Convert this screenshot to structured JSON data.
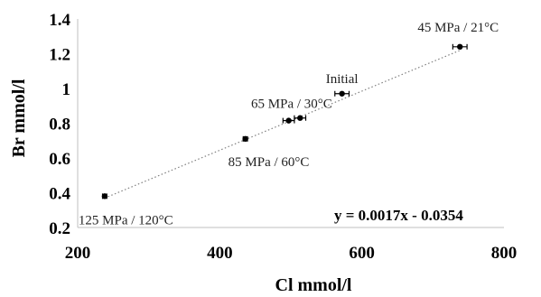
{
  "chart_data": {
    "type": "scatter",
    "xlabel": "Cl mmol/l",
    "ylabel": "Br mmol/l",
    "xlim": [
      200,
      800
    ],
    "ylim": [
      0.2,
      1.4
    ],
    "xticks": [
      200,
      400,
      600,
      800
    ],
    "xtick_labels": [
      "200",
      "400",
      "600",
      "800"
    ],
    "yticks": [
      0.2,
      0.4,
      0.6,
      0.8,
      1.0,
      1.2,
      1.4
    ],
    "ytick_labels": [
      "0.2",
      "0.4",
      "0.6",
      "0.8",
      "1",
      "1.2",
      "1.4"
    ],
    "grid": false,
    "points": [
      {
        "x": 738,
        "y": 1.24,
        "xerr": 10
      },
      {
        "x": 572,
        "y": 0.97,
        "xerr": 10
      },
      {
        "x": 513,
        "y": 0.83,
        "xerr": 8
      },
      {
        "x": 497,
        "y": 0.815,
        "xerr": 8
      },
      {
        "x": 436,
        "y": 0.71,
        "xerr": 3
      },
      {
        "x": 238,
        "y": 0.38,
        "xerr": 3
      }
    ],
    "annotations": [
      {
        "text": "45 MPa / 21°C",
        "x": 738,
        "y": 1.24
      },
      {
        "text": "Initial",
        "x": 572,
        "y": 0.97
      },
      {
        "text": "65 MPa / 30°C",
        "x": 505,
        "y": 0.82
      },
      {
        "text": "85 MPa / 60°C",
        "x": 436,
        "y": 0.71
      },
      {
        "text": "125 MPa / 120°C",
        "x": 238,
        "y": 0.38
      }
    ],
    "trendline": {
      "slope": 0.0017,
      "intercept": -0.0354,
      "x_range": [
        238,
        738
      ],
      "equation": "y = 0.0017x - 0.0354"
    }
  }
}
